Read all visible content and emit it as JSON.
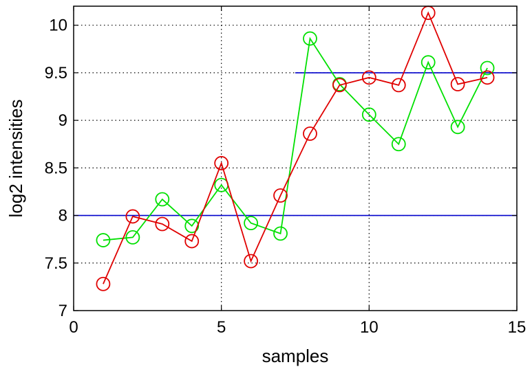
{
  "chart_data": {
    "type": "line",
    "title": "",
    "xlabel": "samples",
    "ylabel": "log2 intensities",
    "xlim": [
      0,
      15
    ],
    "ylim": [
      7,
      10.2
    ],
    "xticks": [
      0,
      5,
      10,
      15
    ],
    "yticks": [
      7,
      7.5,
      8,
      8.5,
      9,
      9.5,
      10
    ],
    "xtick_labels": [
      "0",
      "5",
      "10",
      "15"
    ],
    "ytick_labels": [
      "7",
      "7.5",
      "8",
      "8.5",
      "9",
      "9.5",
      "10"
    ],
    "grid": true,
    "grid_style": "dotted",
    "marker": "circle-open",
    "series": [
      {
        "color": "#00e000",
        "x": [
          1,
          2,
          3,
          4,
          5,
          6,
          7,
          8,
          9,
          10,
          11,
          12,
          13,
          14
        ],
        "y": [
          7.74,
          7.77,
          8.17,
          7.89,
          8.32,
          7.92,
          7.81,
          9.86,
          9.38,
          9.06,
          8.75,
          9.61,
          8.93,
          9.55
        ]
      },
      {
        "color": "#e00000",
        "x": [
          1,
          2,
          3,
          4,
          5,
          6,
          7,
          8,
          9,
          10,
          11,
          12,
          13,
          14
        ],
        "y": [
          7.28,
          7.99,
          7.91,
          7.73,
          8.55,
          7.52,
          8.21,
          8.86,
          9.37,
          9.45,
          9.37,
          10.13,
          9.38,
          9.45
        ]
      }
    ],
    "reference_lines": [
      {
        "color": "#0000cc",
        "y": 8.0,
        "x_start": 0,
        "x_end": 15
      },
      {
        "color": "#0000cc",
        "y": 9.5,
        "x_start": 7.5,
        "x_end": 15
      }
    ]
  }
}
